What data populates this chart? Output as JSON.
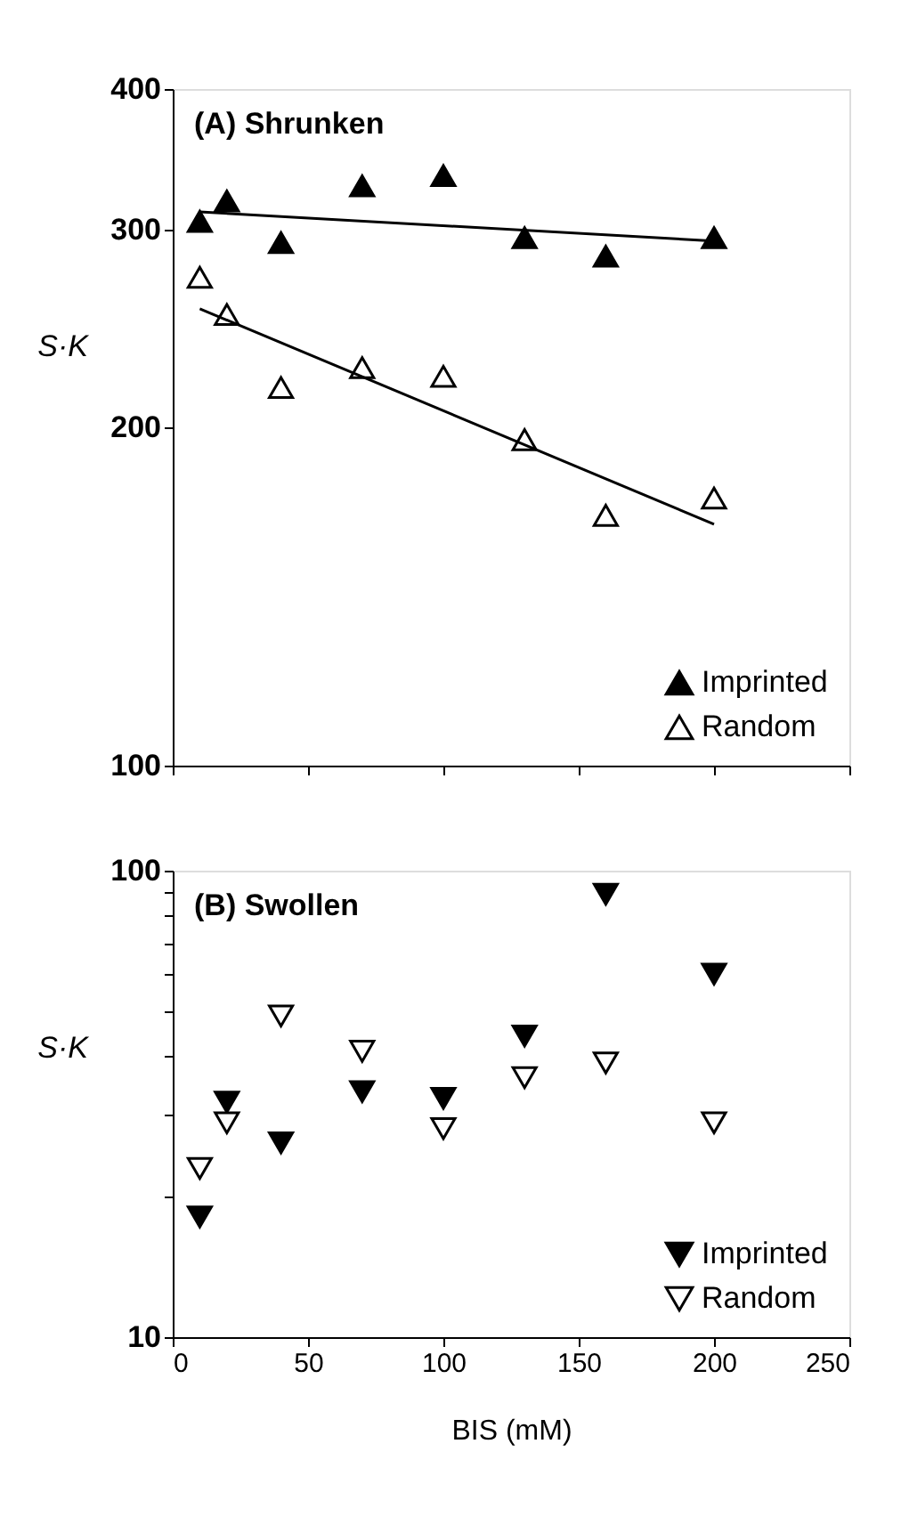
{
  "chart_data": [
    {
      "type": "scatter",
      "title": "(A) Shrunken",
      "ylabel": "S·K",
      "log": "y",
      "xlim": [
        0,
        250
      ],
      "xticks": [
        0,
        50,
        100,
        150,
        200,
        250
      ],
      "ylim": [
        100,
        400
      ],
      "yticks": [
        100,
        200,
        300,
        400
      ],
      "tick_labels": "y",
      "legend": "bottom right",
      "marker": "triangle",
      "grid": false,
      "series": [
        {
          "name": "Imprinted",
          "color": "#000000",
          "x": [
            10,
            20,
            40,
            70,
            100,
            130,
            160,
            200
          ],
          "values": [
            305,
            318,
            292,
            328,
            335,
            295,
            284,
            295
          ]
        },
        {
          "name": "Random",
          "color": "#ffffff",
          "x": [
            10,
            20,
            40,
            70,
            100,
            130,
            160,
            200
          ],
          "values": [
            272,
            252,
            217,
            226,
            222,
            195,
            167,
            173
          ]
        },
        {
          "type": "line",
          "color": "#000000",
          "marker": "none",
          "line_style": "solid",
          "x": [
            10,
            200
          ],
          "values": [
            311,
            293
          ]
        },
        {
          "type": "line",
          "color": "#000000",
          "marker": "none",
          "line_style": "solid",
          "x": [
            10,
            200
          ],
          "values": [
            255,
            164
          ]
        }
      ]
    },
    {
      "type": "scatter",
      "title": "(B) Swollen",
      "xlabel": "BIS (mM)",
      "ylabel": "S·K",
      "log": "y",
      "xlim": [
        0,
        250
      ],
      "xticks": [
        0,
        50,
        100,
        150,
        200,
        250
      ],
      "ylim": [
        10,
        100
      ],
      "yticks": [
        10,
        {
          "value": 20,
          "label": null
        },
        {
          "value": 30,
          "label": null
        },
        {
          "value": 40,
          "label": null
        },
        {
          "value": 50,
          "label": null
        },
        {
          "value": 60,
          "label": null
        },
        {
          "value": 70,
          "label": null
        },
        {
          "value": 80,
          "label": null
        },
        {
          "value": 90,
          "label": null
        },
        100
      ],
      "legend": "bottom right",
      "marker": "triangle-down",
      "grid": false,
      "series": [
        {
          "name": "Imprinted",
          "color": "#000000",
          "x": [
            10,
            20,
            40,
            70,
            100,
            130,
            160,
            200
          ],
          "values": [
            18.1,
            31.9,
            26.1,
            33.6,
            32.5,
            44.2,
            89,
            60
          ]
        },
        {
          "name": "Random",
          "color": "#ffffff",
          "x": [
            10,
            20,
            40,
            70,
            100,
            130,
            160,
            200
          ],
          "values": [
            23.0,
            28.8,
            48.8,
            41.0,
            28.0,
            36.0,
            38.7,
            28.8
          ]
        }
      ]
    }
  ]
}
